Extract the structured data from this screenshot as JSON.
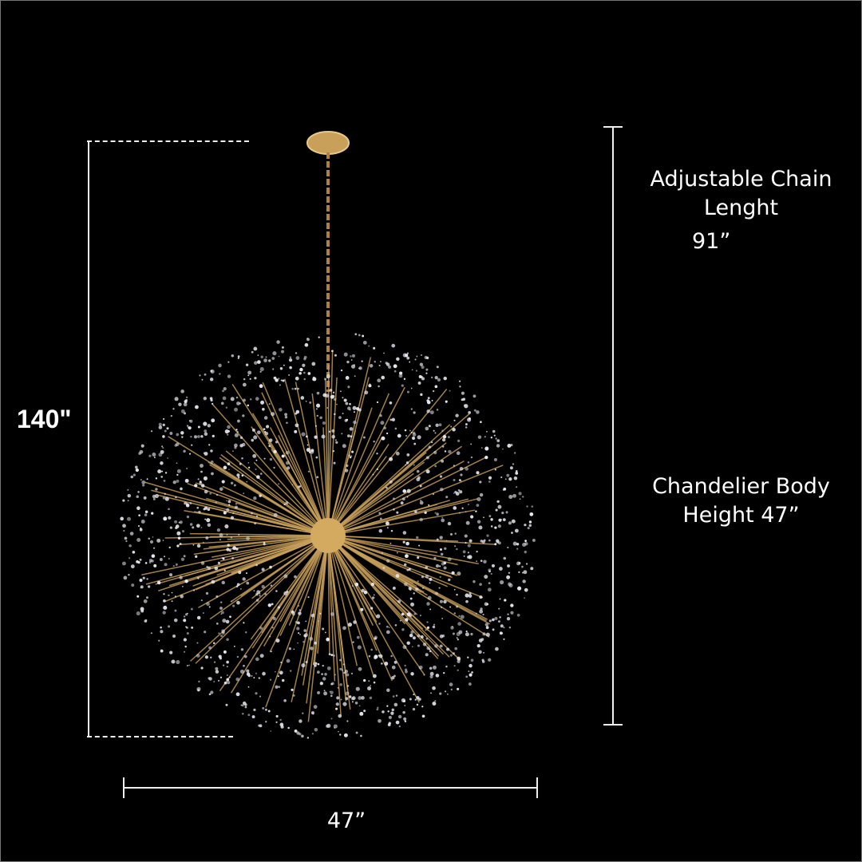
{
  "dimensions": {
    "total_height": "140\"",
    "chain_label_line1": "Adjustable Chain",
    "chain_label_line2": "Lenght",
    "chain_value": "91”",
    "body_label_line1": "Chandelier Body",
    "body_label_line2": "Height 47”",
    "width": "47”"
  },
  "colors": {
    "background": "#000000",
    "lines": "#eeeeee",
    "gold": "#c9a05a",
    "crystal": "#e8e8f0"
  }
}
